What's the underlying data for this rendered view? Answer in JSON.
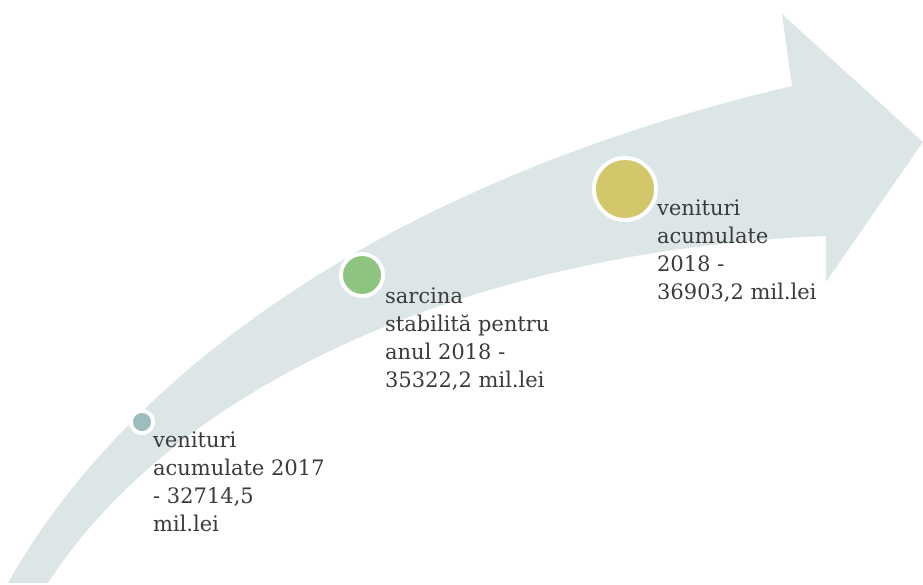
{
  "items": [
    {
      "lines": [
        "venituri",
        "acumulate 2017",
        "- 32714,5",
        "mil.lei"
      ]
    },
    {
      "lines": [
        "sarcina",
        "stabilită pentru",
        "anul 2018 -",
        "35322,2 mil.lei"
      ]
    },
    {
      "lines": [
        "venituri",
        "acumulate",
        "2018 -",
        "36903,2 mil.lei"
      ]
    }
  ]
}
